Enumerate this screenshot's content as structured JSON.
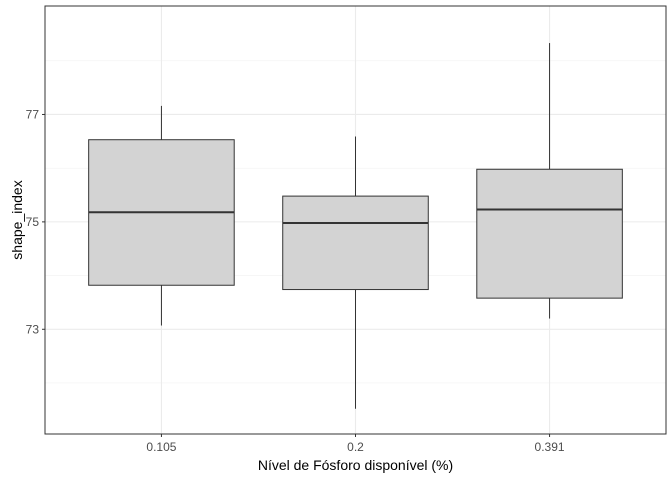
{
  "chart_data": {
    "type": "boxplot",
    "xlabel": "Nível de Fósforo disponível (%)",
    "ylabel": "shape_index",
    "categories": [
      "0.105",
      "0.2",
      "0.391"
    ],
    "boxes": [
      {
        "category": "0.105",
        "whisker_low": 73.07,
        "q1": 73.82,
        "median": 75.18,
        "q3": 76.53,
        "whisker_high": 77.16
      },
      {
        "category": "0.2",
        "whisker_low": 71.52,
        "q1": 73.74,
        "median": 74.98,
        "q3": 75.48,
        "whisker_high": 76.59
      },
      {
        "category": "0.391",
        "whisker_low": 73.2,
        "q1": 73.58,
        "median": 75.23,
        "q3": 75.98,
        "whisker_high": 78.33
      }
    ],
    "ylim": [
      71.05,
      79.02
    ],
    "y_ticks": [
      73,
      75,
      77
    ],
    "y_tick_labels": [
      "73",
      "75",
      "77"
    ],
    "grid": true,
    "box_fill": "#d3d3d3",
    "box_stroke": "#333333"
  }
}
